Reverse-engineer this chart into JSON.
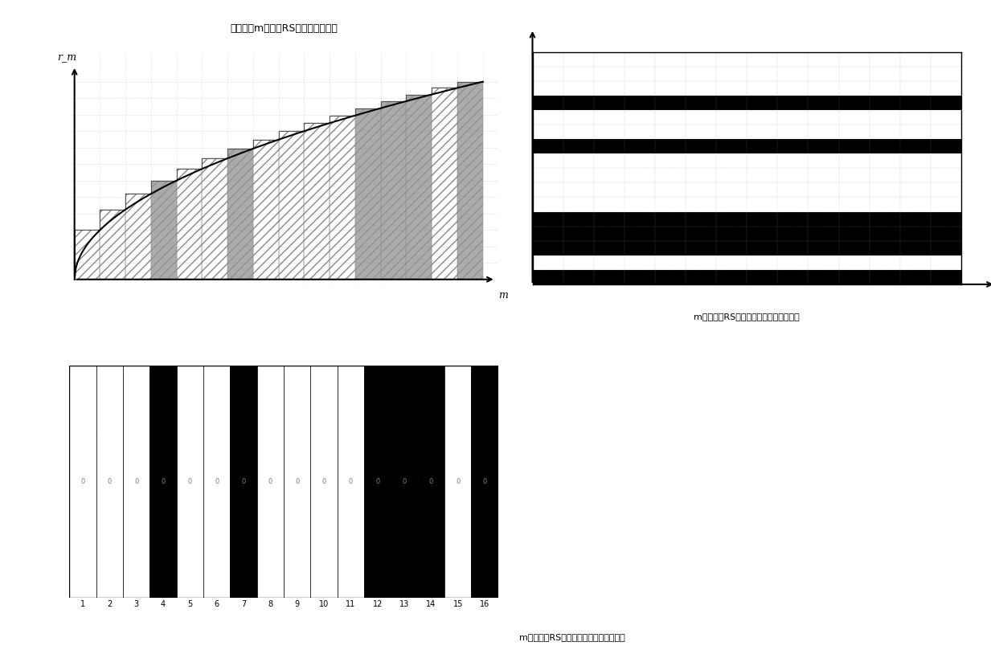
{
  "title": "（与序数m对应的RS波带片的半径）",
  "y_label_top": "r_m",
  "bottom_xlabel": "m（第四级RS序列中字母所对应的序数）",
  "top_xlabel": "m（第四级RS序列中字母所对应的序数）",
  "rudin_shapiro_16": [
    1,
    1,
    1,
    -1,
    1,
    1,
    -1,
    1,
    1,
    1,
    1,
    -1,
    -1,
    -1,
    1,
    -1
  ],
  "n_zones": 16,
  "bg_color": "#ffffff",
  "grid_color": "#cccccc",
  "curve_color": "#000000",
  "black_zone_color": "#000000",
  "white_zone_color": "#ffffff",
  "gray_bg": "#d0d0d0",
  "hatch_pattern": "///",
  "bottom_label": "m（第四级RS序列中字母所对应的序数）"
}
